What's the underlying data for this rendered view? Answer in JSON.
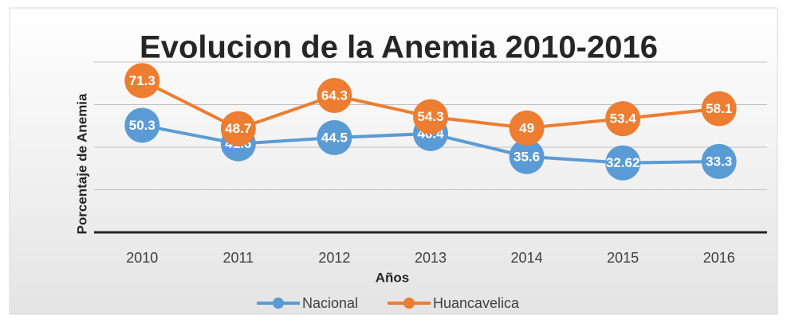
{
  "chart_data": {
    "type": "line",
    "title": "Evolucion de la Anemia 2010-2016",
    "x_label": "Años",
    "y_label": "Porcentaje de Anemia",
    "categories": [
      "2010",
      "2011",
      "2012",
      "2013",
      "2014",
      "2015",
      "2016"
    ],
    "series": [
      {
        "name": "Nacional",
        "color": "#5b9bd5",
        "values": [
          50.3,
          41.6,
          44.5,
          46.4,
          35.6,
          32.62,
          33.3
        ]
      },
      {
        "name": "Huancavelica",
        "color": "#ed7d31",
        "values": [
          71.3,
          48.7,
          64.3,
          54.3,
          49,
          53.4,
          58.1
        ]
      }
    ],
    "ylim": [
      0,
      80
    ],
    "yticks": [
      0,
      20,
      40,
      60,
      80
    ],
    "grid": true,
    "legend": "bottom"
  }
}
